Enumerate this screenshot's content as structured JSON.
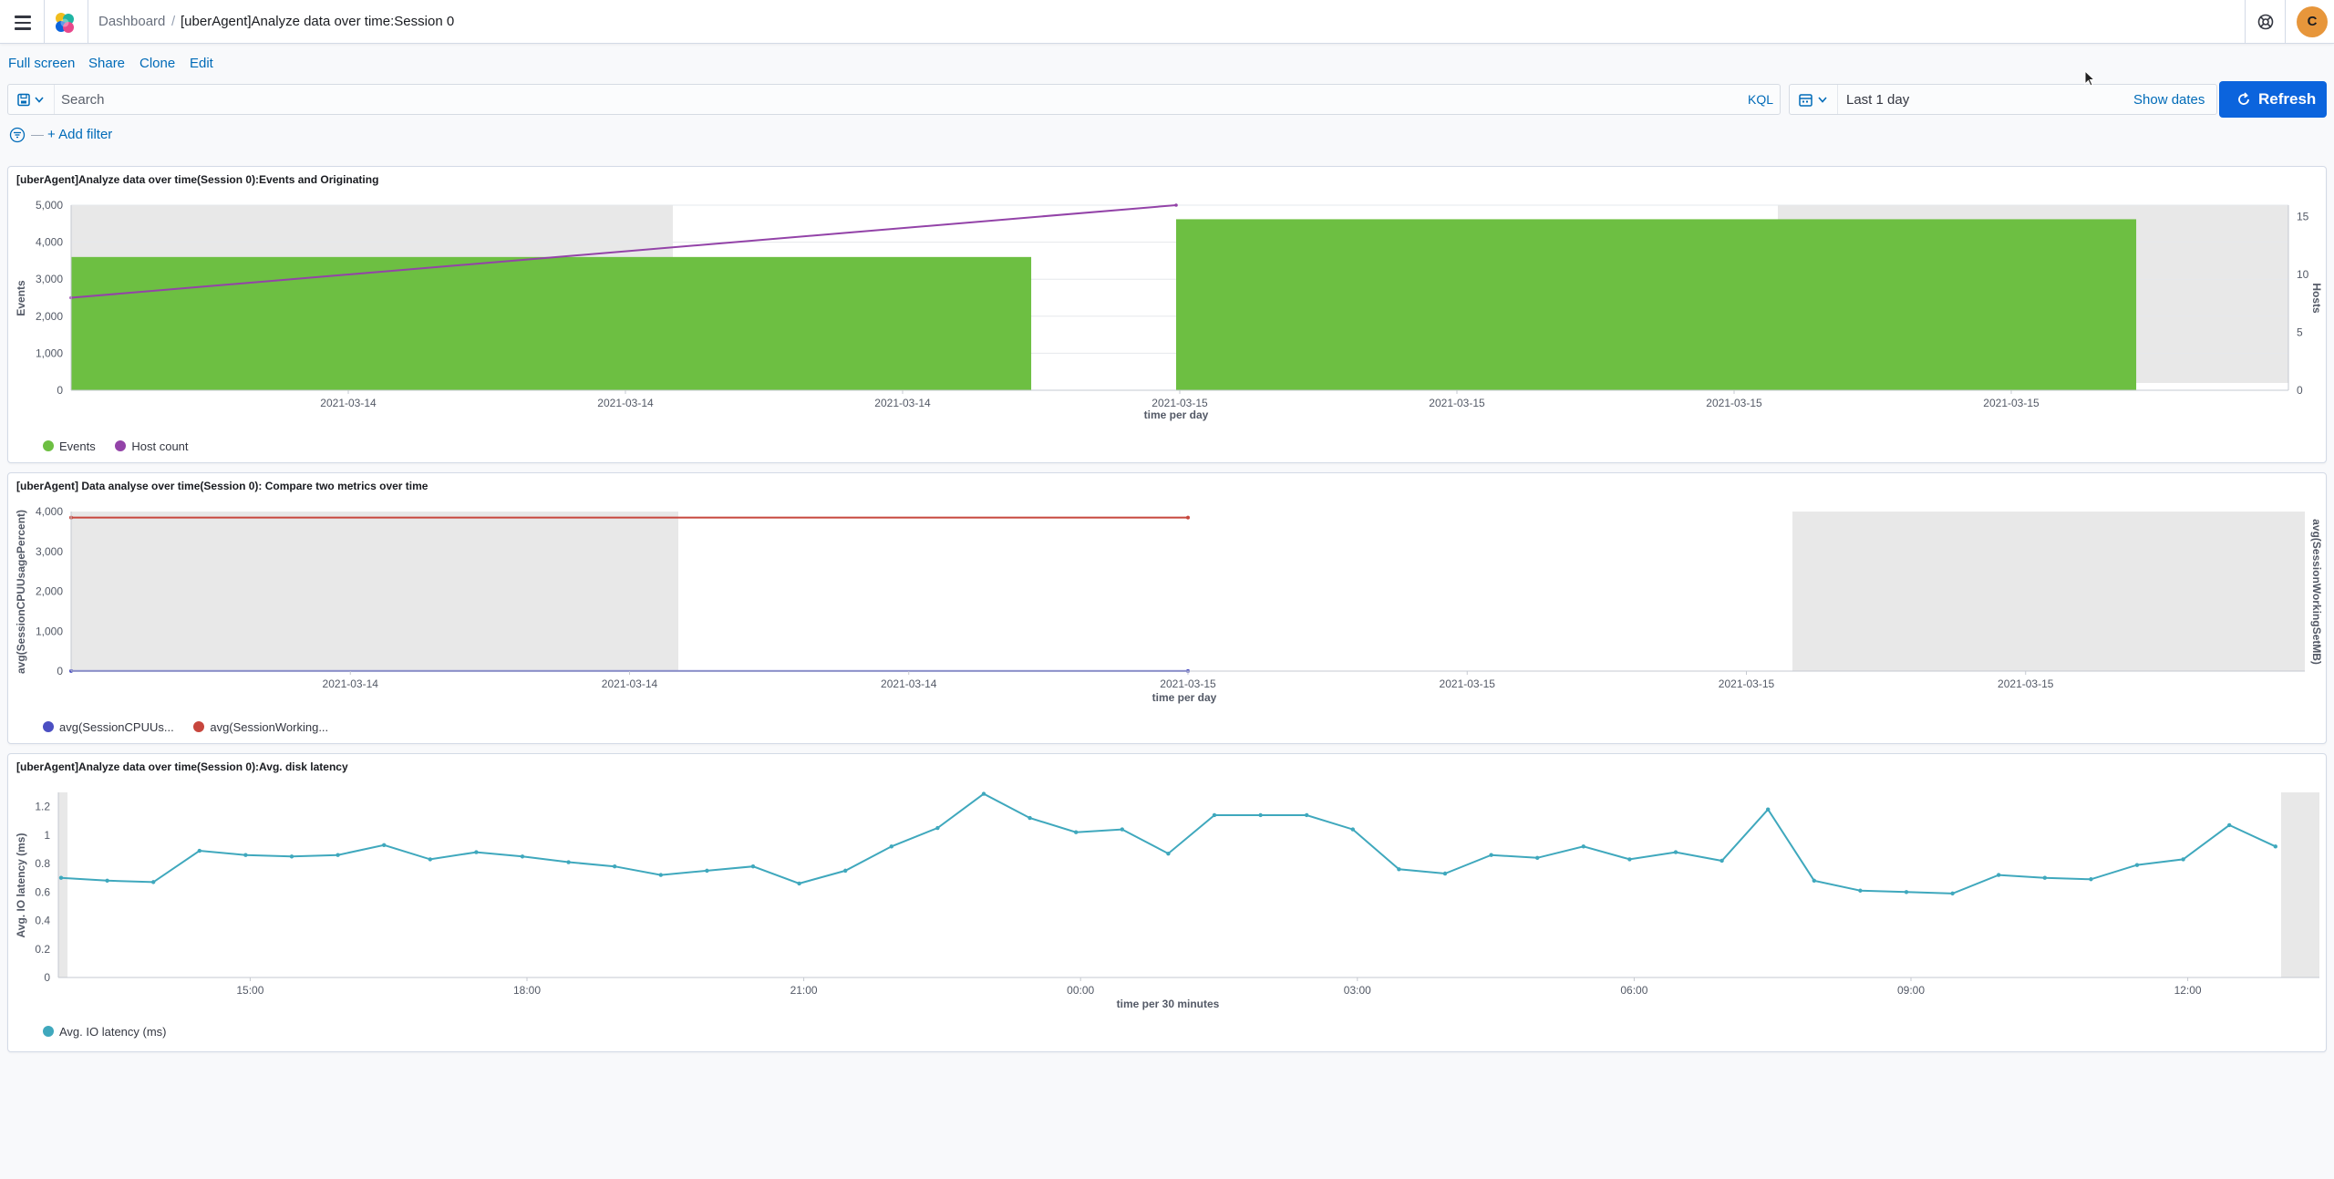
{
  "header": {
    "breadcrumbs": [
      "Dashboard",
      "[uberAgent]Analyze data over time:Session 0"
    ],
    "avatar_initial": "C"
  },
  "toolbar": {
    "full_screen": "Full screen",
    "share": "Share",
    "clone": "Clone",
    "edit": "Edit"
  },
  "query": {
    "placeholder": "Search",
    "language": "KQL"
  },
  "time": {
    "range": "Last 1 day",
    "show_dates": "Show dates",
    "refresh": "Refresh"
  },
  "filters": {
    "add_filter": "+ Add filter"
  },
  "colors": {
    "accent": "#0b64dd",
    "link": "#006bb8",
    "events": "#6dbf42",
    "hosts": "#9343a8",
    "cpu": "#4b4fc2",
    "ws": "#c7463d",
    "latency": "#3fa8bd"
  },
  "panels": [
    {
      "title": "[uberAgent]Analyze data over time(Session 0):Events and Originating",
      "legend": [
        "Events",
        "Host count"
      ]
    },
    {
      "title": "[uberAgent] Data analyse over time(Session 0): Compare two metrics over time",
      "legend": [
        "avg(SessionCPUUs...",
        "avg(SessionWorking..."
      ]
    },
    {
      "title": "[uberAgent]Analyze data over time(Session 0):Avg. disk latency",
      "legend": [
        "Avg. IO latency (ms)"
      ]
    }
  ],
  "chart_data": [
    {
      "type": "bar",
      "title": "[uberAgent]Analyze data over time(Session 0):Events and Originating",
      "xlabel": "time per day",
      "ylabel": "Events",
      "y2label": "Hosts",
      "x_ticks": [
        "2021-03-14",
        "2021-03-14",
        "2021-03-14",
        "2021-03-15",
        "2021-03-15",
        "2021-03-15",
        "2021-03-15"
      ],
      "ylim": [
        0,
        5000
      ],
      "y_ticks": [
        "0",
        "1,000",
        "2,000",
        "3,000",
        "4,000",
        "5,000"
      ],
      "y2lim": [
        0,
        16
      ],
      "y2_ticks": [
        "0",
        "5",
        "10",
        "15"
      ],
      "categories": [
        "2021-03-14",
        "2021-03-15"
      ],
      "series": [
        {
          "name": "Events",
          "type": "bar",
          "values": [
            3600,
            4620
          ]
        },
        {
          "name": "Host count",
          "type": "line",
          "values": [
            8,
            16
          ]
        }
      ],
      "legend": "bottom-left"
    },
    {
      "type": "line",
      "title": "[uberAgent] Data analyse over time(Session 0): Compare two metrics over time",
      "xlabel": "time per day",
      "ylabel": "avg(SessionCPUUsagePercent)",
      "y2label": "avg(SessionWorkingSetMB)",
      "x_ticks": [
        "2021-03-14",
        "2021-03-14",
        "2021-03-14",
        "2021-03-15",
        "2021-03-15",
        "2021-03-15",
        "2021-03-15"
      ],
      "ylim": [
        0,
        4000
      ],
      "y_ticks": [
        "0",
        "1,000",
        "2,000",
        "3,000",
        "4,000"
      ],
      "categories": [
        "2021-03-14",
        "2021-03-15"
      ],
      "series": [
        {
          "name": "avg(SessionCPUUs...",
          "values": [
            2,
            2
          ]
        },
        {
          "name": "avg(SessionWorking...",
          "values": [
            3850,
            3850
          ]
        }
      ],
      "legend": "bottom-left"
    },
    {
      "type": "line",
      "title": "[uberAgent]Analyze data over time(Session 0):Avg. disk latency",
      "xlabel": "time per 30 minutes",
      "ylabel": "Avg. IO latency (ms)",
      "x_ticks": [
        "15:00",
        "18:00",
        "21:00",
        "00:00",
        "03:00",
        "06:00",
        "09:00",
        "12:00"
      ],
      "ylim": [
        0,
        1.3
      ],
      "y_ticks": [
        "0",
        "0.2",
        "0.4",
        "0.6",
        "0.8",
        "1",
        "1.2"
      ],
      "series": [
        {
          "name": "Avg. IO latency (ms)",
          "values": [
            0.7,
            0.68,
            0.67,
            0.89,
            0.86,
            0.85,
            0.86,
            0.93,
            0.83,
            0.88,
            0.85,
            0.81,
            0.78,
            0.72,
            0.75,
            0.78,
            0.66,
            0.75,
            0.92,
            1.05,
            1.29,
            1.12,
            1.02,
            1.04,
            0.87,
            1.14,
            1.14,
            1.14,
            1.04,
            0.76,
            0.73,
            0.86,
            0.84,
            0.92,
            0.83,
            0.88,
            0.82,
            1.18,
            0.68,
            0.61,
            0.6,
            0.59,
            0.72,
            0.7,
            0.69,
            0.79,
            0.83,
            1.07,
            0.92
          ]
        }
      ],
      "legend": "bottom-left"
    }
  ]
}
